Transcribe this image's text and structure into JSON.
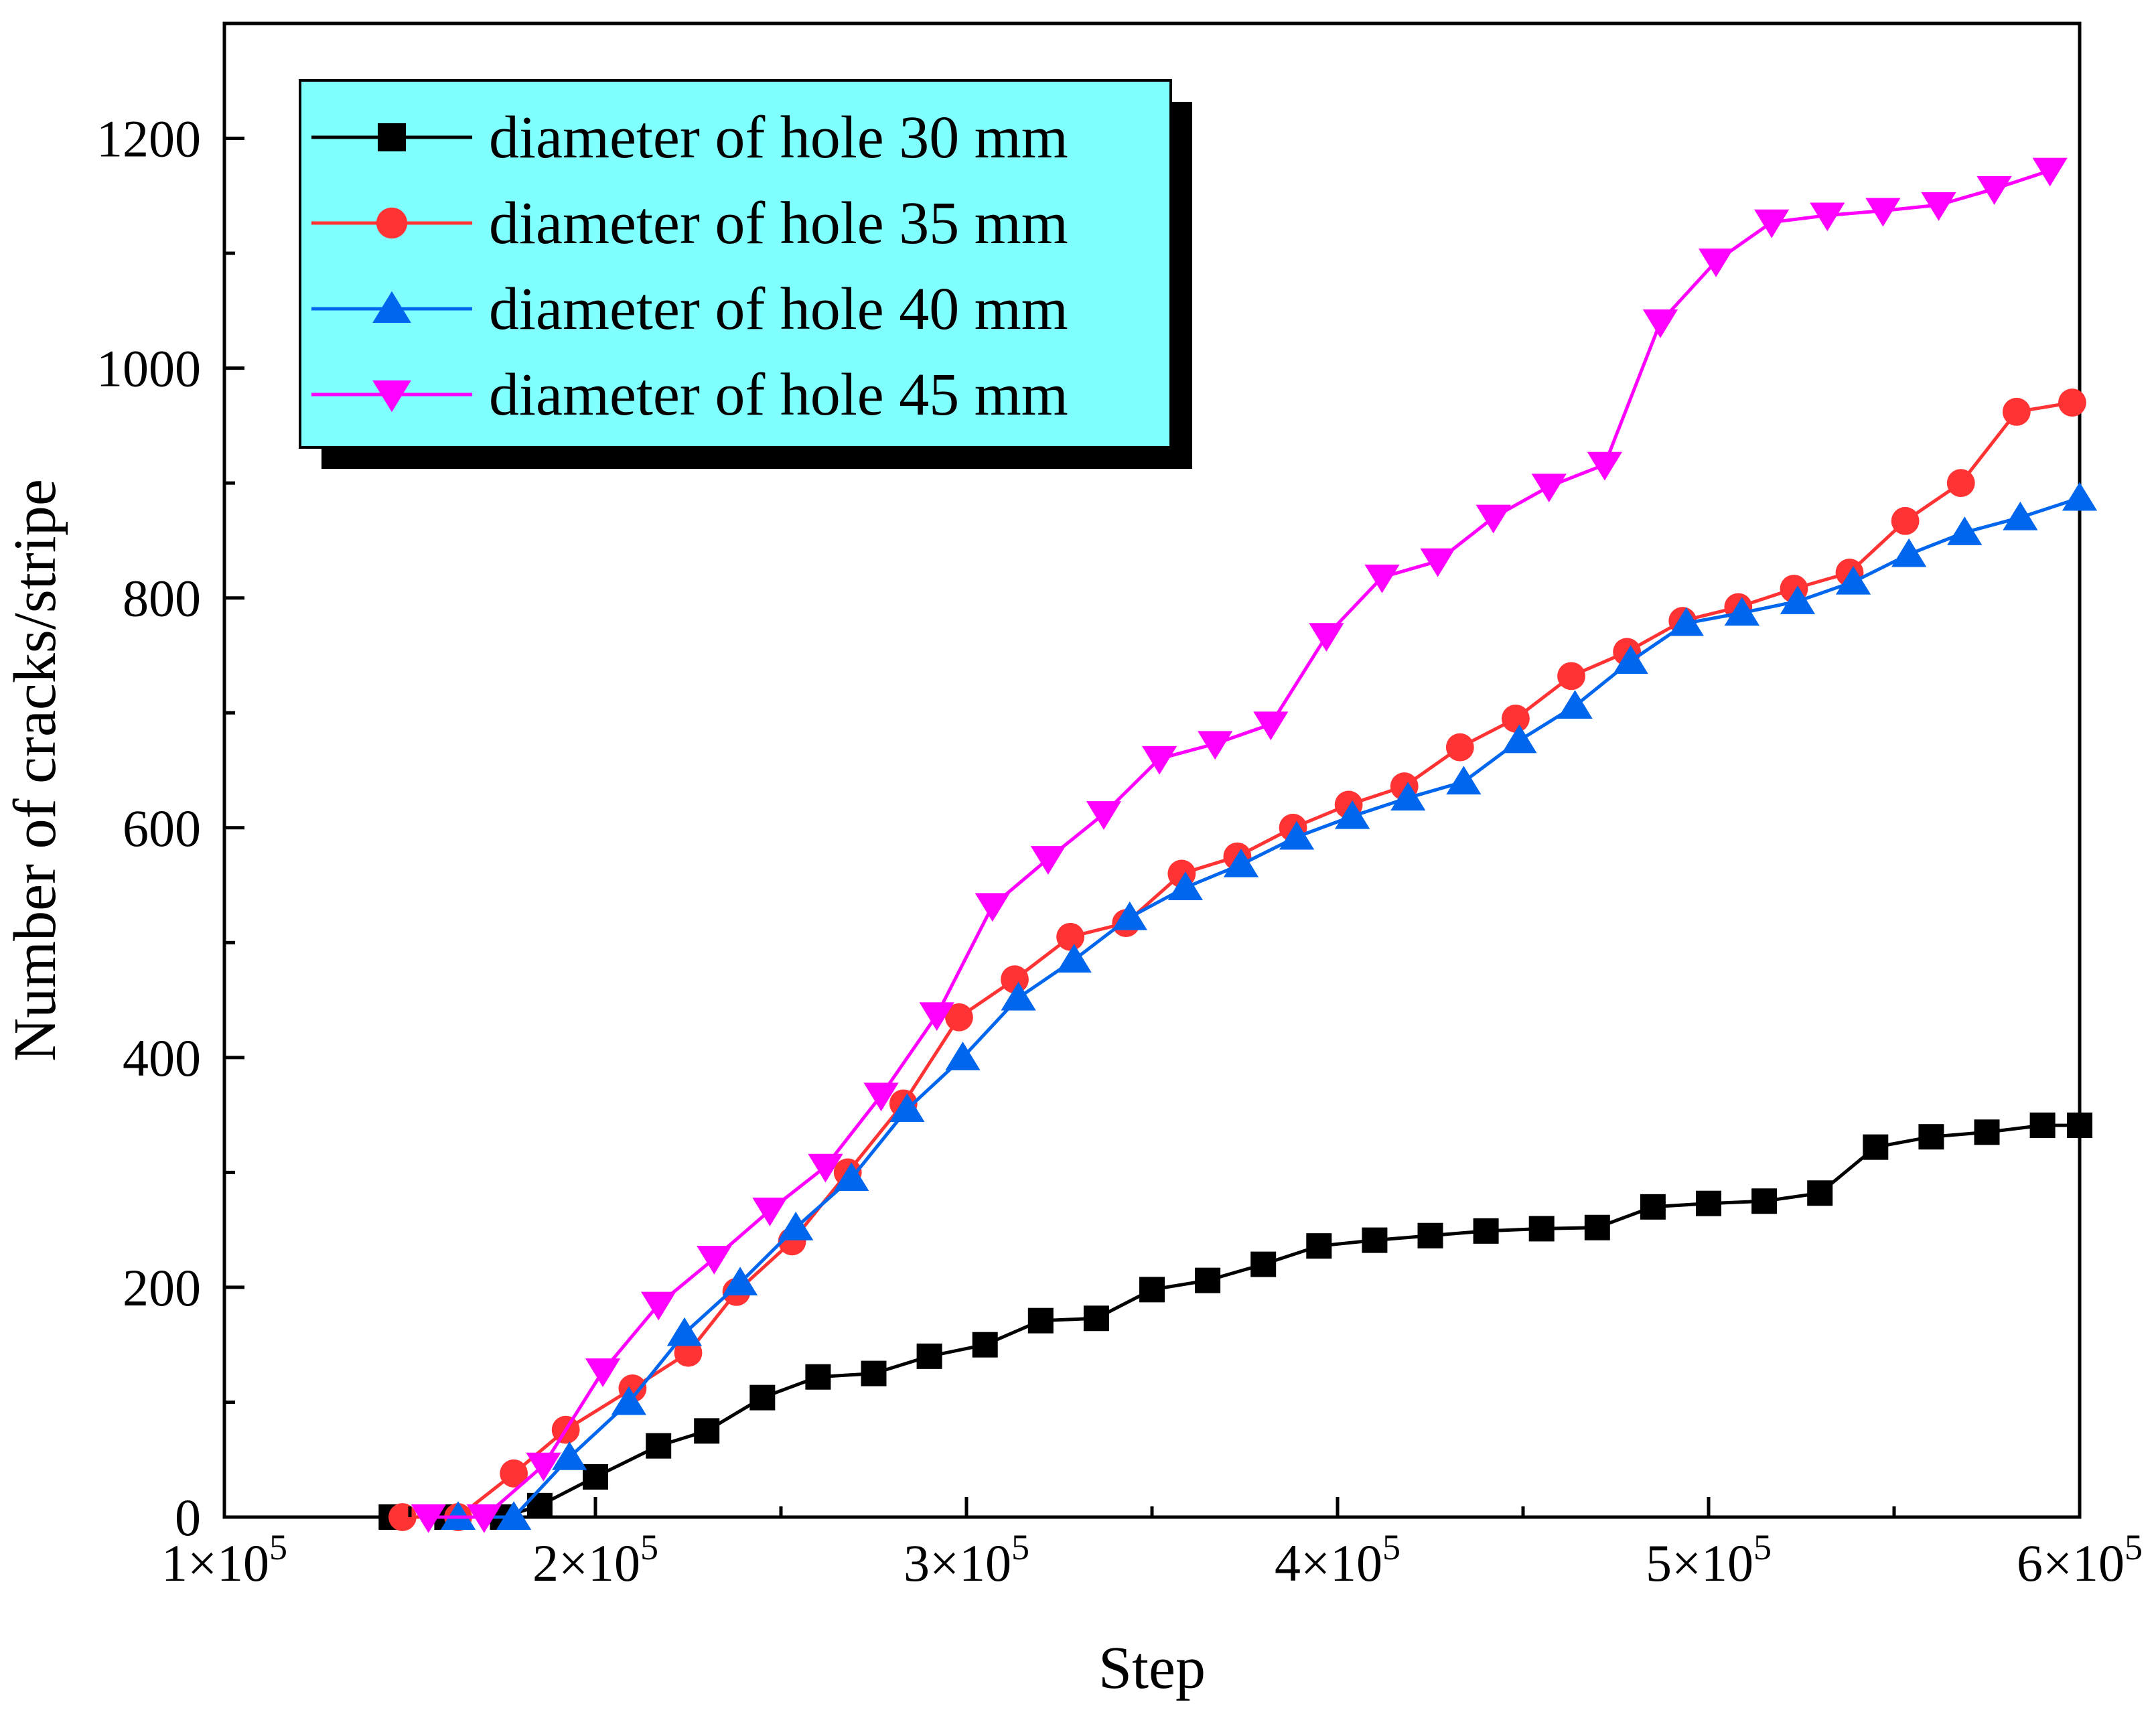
{
  "chart_data": {
    "type": "line",
    "xlabel": "Step",
    "ylabel": "Number of cracks/stripe",
    "xlim": [
      100000,
      600000
    ],
    "ylim": [
      0,
      1300
    ],
    "x_ticks": [
      {
        "value": 100000,
        "mant": "1",
        "exp": "5"
      },
      {
        "value": 200000,
        "mant": "2",
        "exp": "5"
      },
      {
        "value": 300000,
        "mant": "3",
        "exp": "5"
      },
      {
        "value": 400000,
        "mant": "4",
        "exp": "5"
      },
      {
        "value": 500000,
        "mant": "5",
        "exp": "5"
      },
      {
        "value": 600000,
        "mant": "6",
        "exp": "5"
      }
    ],
    "y_ticks": [
      0,
      200,
      400,
      600,
      800,
      1000,
      1200
    ],
    "legend_position": "top-left",
    "legend_background": "#80ffff",
    "series": [
      {
        "name": "diameter of hole 30 mm",
        "color": "#000000",
        "marker": "square",
        "x": [
          145000,
          160000,
          175000,
          185000,
          200000,
          217000,
          230000,
          245000,
          260000,
          275000,
          290000,
          305000,
          320000,
          335000,
          350000,
          365000,
          380000,
          395000,
          410000,
          425000,
          440000,
          455000,
          470000,
          485000,
          500000,
          515000,
          530000,
          545000,
          560000,
          575000,
          590000,
          600000
        ],
        "y": [
          0,
          0,
          0,
          10,
          35,
          62,
          75,
          104,
          122,
          125,
          140,
          150,
          171,
          173,
          198,
          206,
          220,
          236,
          241,
          245,
          249,
          251,
          252,
          270,
          273,
          275,
          282,
          322,
          331,
          335,
          341,
          341
        ]
      },
      {
        "name": "diameter of hole 35 mm",
        "color": "#ff3333",
        "marker": "circle",
        "x": [
          148000,
          163000,
          178000,
          192000,
          210000,
          225000,
          238000,
          253000,
          268000,
          283000,
          298000,
          313000,
          328000,
          343000,
          358000,
          373000,
          388000,
          403000,
          418000,
          433000,
          448000,
          463000,
          478000,
          493000,
          508000,
          523000,
          538000,
          553000,
          568000,
          583000,
          598000
        ],
        "y": [
          0,
          0,
          38,
          76,
          112,
          143,
          196,
          240,
          300,
          360,
          435,
          468,
          505,
          517,
          560,
          575,
          600,
          620,
          636,
          670,
          695,
          732,
          753,
          780,
          792,
          808,
          822,
          867,
          900,
          962,
          970
        ]
      },
      {
        "name": "diameter of hole 40 mm",
        "color": "#0066ee",
        "marker": "triangle-up",
        "x": [
          163000,
          178000,
          193000,
          209000,
          224000,
          239000,
          254000,
          269000,
          284000,
          299000,
          314000,
          329000,
          344000,
          359000,
          374000,
          389000,
          404000,
          419000,
          434000,
          449000,
          464000,
          479000,
          494000,
          509000,
          524000,
          539000,
          554000,
          569000,
          584000,
          600000
        ],
        "y": [
          0,
          0,
          52,
          100,
          160,
          204,
          252,
          295,
          355,
          400,
          452,
          485,
          522,
          548,
          568,
          592,
          610,
          626,
          640,
          676,
          706,
          745,
          778,
          787,
          797,
          814,
          838,
          857,
          870,
          887
        ]
      },
      {
        "name": "diameter of hole 45 mm",
        "color": "#ff00ff",
        "marker": "triangle-down",
        "x": [
          155000,
          170000,
          186000,
          202000,
          217000,
          232000,
          247000,
          262000,
          277000,
          292000,
          307000,
          322000,
          337000,
          352000,
          367000,
          382000,
          397000,
          412000,
          427000,
          442000,
          457000,
          472000,
          487000,
          502000,
          517000,
          532000,
          547000,
          562000,
          577000,
          592000
        ],
        "y": [
          0,
          0,
          45,
          127,
          185,
          225,
          267,
          305,
          367,
          437,
          532,
          573,
          612,
          660,
          673,
          690,
          767,
          818,
          832,
          870,
          897,
          916,
          1040,
          1093,
          1127,
          1133,
          1137,
          1142,
          1156,
          1172
        ]
      }
    ]
  }
}
